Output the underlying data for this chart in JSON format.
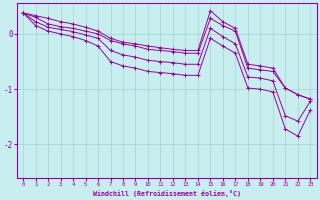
{
  "xlabel": "Windchill (Refroidissement éolien,°C)",
  "background_color": "#c8eef0",
  "line_color": "#990099",
  "grid_color": "#a0d8d0",
  "xlim": [
    -0.5,
    23.5
  ],
  "ylim": [
    -2.6,
    0.55
  ],
  "yticks": [
    0,
    -1,
    -2
  ],
  "xticks": [
    0,
    1,
    2,
    3,
    4,
    5,
    6,
    7,
    8,
    9,
    10,
    11,
    12,
    13,
    14,
    15,
    16,
    17,
    18,
    19,
    20,
    21,
    22,
    23
  ],
  "lines": [
    [
      0.38,
      0.3,
      0.18,
      0.13,
      0.1,
      0.05,
      0.0,
      -0.12,
      -0.18,
      -0.22,
      -0.28,
      -0.3,
      -0.32,
      -0.35,
      -0.35,
      0.28,
      0.15,
      0.05,
      -0.62,
      -0.65,
      -0.68,
      -0.98,
      -1.1,
      -1.18
    ],
    [
      0.38,
      0.22,
      0.12,
      0.08,
      0.04,
      -0.02,
      -0.08,
      -0.3,
      -0.38,
      -0.42,
      -0.48,
      -0.5,
      -0.52,
      -0.55,
      -0.55,
      0.1,
      -0.05,
      -0.18,
      -0.78,
      -0.8,
      -0.85,
      -1.48,
      -1.58,
      -1.22
    ],
    [
      0.38,
      0.15,
      0.05,
      0.0,
      -0.05,
      -0.12,
      -0.22,
      -0.5,
      -0.58,
      -0.62,
      -0.68,
      -0.7,
      -0.72,
      -0.75,
      -0.75,
      -0.08,
      -0.22,
      -0.35,
      -0.98,
      -1.0,
      -1.05,
      -1.72,
      -1.85,
      -1.38
    ],
    [
      0.38,
      0.33,
      0.28,
      0.22,
      0.18,
      0.12,
      0.05,
      -0.08,
      -0.15,
      -0.18,
      -0.22,
      -0.25,
      -0.28,
      -0.3,
      -0.3,
      0.42,
      0.22,
      0.1,
      -0.55,
      -0.58,
      -0.62,
      -0.98,
      -1.1,
      -1.18
    ]
  ]
}
